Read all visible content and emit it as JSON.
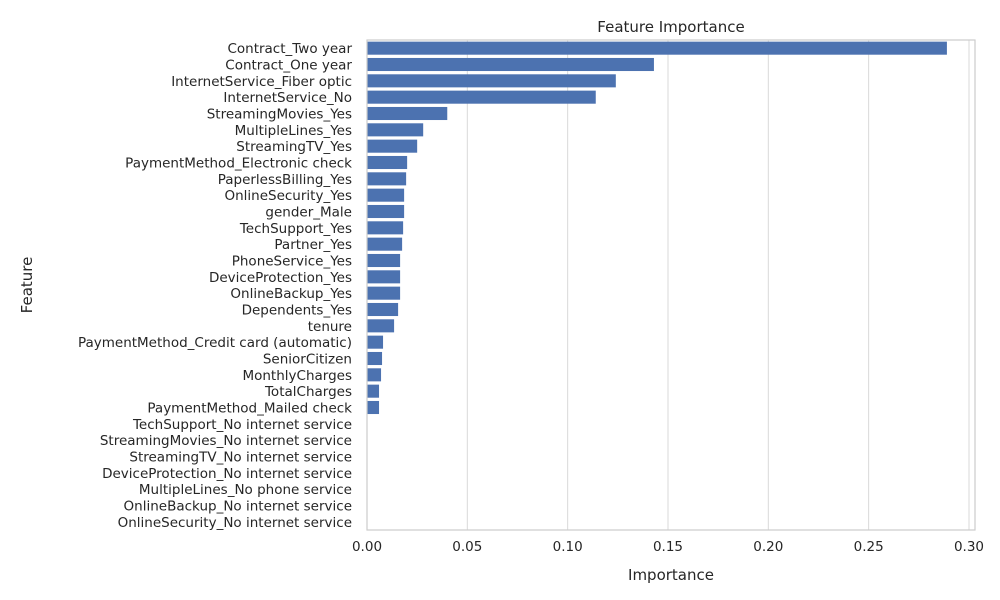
{
  "chart_data": {
    "type": "bar",
    "orientation": "horizontal",
    "title": "Feature Importance",
    "xlabel": "Importance",
    "ylabel": "Feature",
    "xlim": [
      0,
      0.303
    ],
    "xticks": [
      "0.00",
      "0.05",
      "0.10",
      "0.15",
      "0.20",
      "0.25",
      "0.30"
    ],
    "grid": "vertical",
    "bar_color": "#4c72b0",
    "categories": [
      "Contract_Two year",
      "Contract_One year",
      "InternetService_Fiber optic",
      "InternetService_No",
      "StreamingMovies_Yes",
      "MultipleLines_Yes",
      "StreamingTV_Yes",
      "PaymentMethod_Electronic check",
      "PaperlessBilling_Yes",
      "OnlineSecurity_Yes",
      "gender_Male",
      "TechSupport_Yes",
      "Partner_Yes",
      "PhoneService_Yes",
      "DeviceProtection_Yes",
      "OnlineBackup_Yes",
      "Dependents_Yes",
      "tenure",
      "PaymentMethod_Credit card (automatic)",
      "SeniorCitizen",
      "MonthlyCharges",
      "TotalCharges",
      "PaymentMethod_Mailed check",
      "TechSupport_No internet service",
      "StreamingMovies_No internet service",
      "StreamingTV_No internet service",
      "DeviceProtection_No internet service",
      "MultipleLines_No phone service",
      "OnlineBackup_No internet service",
      "OnlineSecurity_No internet service"
    ],
    "values": [
      0.289,
      0.143,
      0.124,
      0.114,
      0.04,
      0.028,
      0.025,
      0.02,
      0.0195,
      0.0185,
      0.0185,
      0.018,
      0.0175,
      0.0165,
      0.0165,
      0.0165,
      0.0155,
      0.0135,
      0.008,
      0.0075,
      0.007,
      0.006,
      0.006,
      0,
      0,
      0,
      0,
      0,
      0,
      0
    ]
  }
}
